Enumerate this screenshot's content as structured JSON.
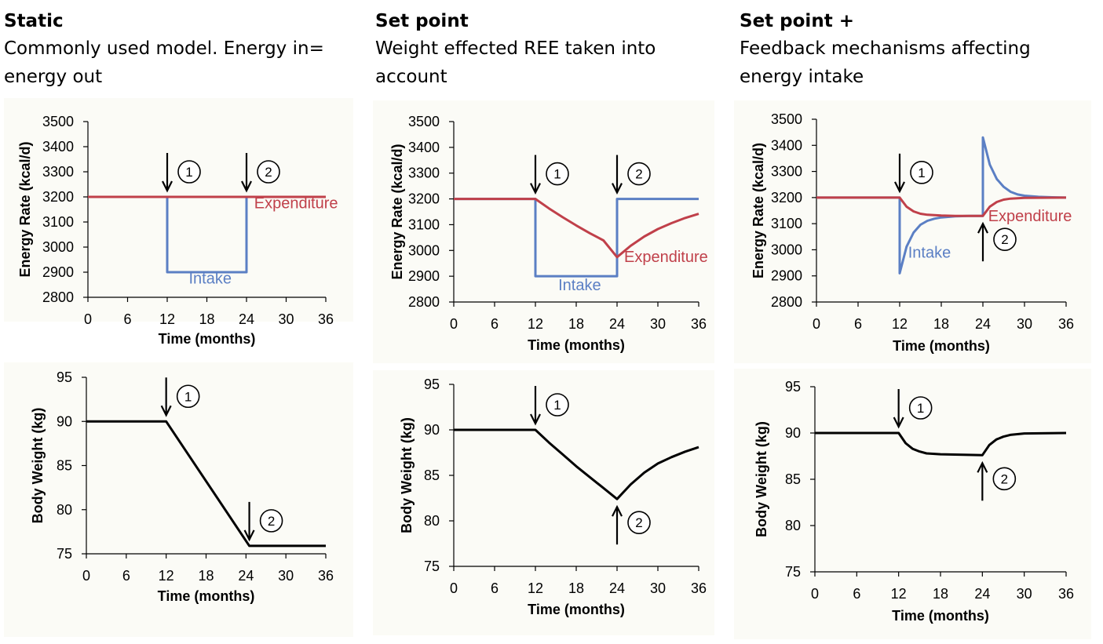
{
  "columns": [
    {
      "heading": "Static",
      "description": "Commonly used model. Energy in= energy out"
    },
    {
      "heading": "Set point",
      "description": "Weight effected REE taken into account"
    },
    {
      "heading": "Set point +",
      "description": "Feedback mechanisms affecting energy intake"
    }
  ],
  "colors": {
    "intake": "#5b7fc4",
    "expenditure": "#c0404a",
    "weight": "#000000"
  },
  "chart_data": [
    {
      "type": "line",
      "panel": "static-energy",
      "xlabel": "Time (months)",
      "ylabel": "Energy Rate (kcal/d)",
      "xlim": [
        0,
        36
      ],
      "ylim": [
        2800,
        3500
      ],
      "xticks": [
        0,
        6,
        12,
        18,
        24,
        30,
        36
      ],
      "yticks": [
        2800,
        2900,
        3000,
        3100,
        3200,
        3300,
        3400,
        3500
      ],
      "series": [
        {
          "name": "Intake",
          "color": "#5b7fc4",
          "points": [
            [
              0,
              3200
            ],
            [
              12,
              3200
            ],
            [
              12,
              2900
            ],
            [
              24,
              2900
            ],
            [
              24,
              3200
            ],
            [
              36,
              3200
            ]
          ]
        },
        {
          "name": "Expenditure",
          "color": "#c0404a",
          "points": [
            [
              0,
              3200
            ],
            [
              36,
              3200
            ]
          ]
        }
      ],
      "labels": [
        {
          "text": "Intake",
          "x": 18.5,
          "y": 2855,
          "color": "#5b7fc4"
        },
        {
          "text": "Expenditure",
          "x": 31.5,
          "y": 3155,
          "color": "#c0404a"
        }
      ],
      "markers": [
        {
          "num": "1",
          "x": 12,
          "y": 3200,
          "dir": "down"
        },
        {
          "num": "2",
          "x": 24,
          "y": 3200,
          "dir": "down"
        }
      ]
    },
    {
      "type": "line",
      "panel": "static-weight",
      "xlabel": "Time (months)",
      "ylabel": "Body Weight (kg)",
      "xlim": [
        0,
        36
      ],
      "ylim": [
        75,
        95
      ],
      "xticks": [
        0,
        6,
        12,
        18,
        24,
        30,
        36
      ],
      "yticks": [
        75,
        80,
        85,
        90,
        95
      ],
      "series": [
        {
          "name": "",
          "color": "#000000",
          "points": [
            [
              0,
              90
            ],
            [
              12,
              90
            ],
            [
              24.5,
              75.9
            ],
            [
              36,
              75.9
            ]
          ]
        }
      ],
      "labels": [],
      "markers": [
        {
          "num": "1",
          "x": 12,
          "y": 90,
          "dir": "down"
        },
        {
          "num": "2",
          "x": 24.5,
          "y": 75.9,
          "dir": "down"
        }
      ]
    },
    {
      "type": "line",
      "panel": "setpoint-energy",
      "xlabel": "Time (months)",
      "ylabel": "Energy Rate (kcal/d)",
      "xlim": [
        0,
        36
      ],
      "ylim": [
        2800,
        3500
      ],
      "xticks": [
        0,
        6,
        12,
        18,
        24,
        30,
        36
      ],
      "yticks": [
        2800,
        2900,
        3000,
        3100,
        3200,
        3300,
        3400,
        3500
      ],
      "series": [
        {
          "name": "Intake",
          "color": "#5b7fc4",
          "points": [
            [
              0,
              3200
            ],
            [
              12,
              3200
            ],
            [
              12,
              2900
            ],
            [
              24,
              2900
            ],
            [
              24,
              3200
            ],
            [
              36,
              3200
            ]
          ]
        },
        {
          "name": "Expenditure",
          "color": "#c0404a",
          "points": [
            [
              0,
              3200
            ],
            [
              12,
              3200
            ],
            [
              14,
              3163
            ],
            [
              16,
              3129
            ],
            [
              18,
              3097
            ],
            [
              20,
              3067
            ],
            [
              22,
              3039
            ],
            [
              24,
              2974
            ],
            [
              24,
              2974
            ],
            [
              26,
              3018
            ],
            [
              28,
              3054
            ],
            [
              30,
              3083
            ],
            [
              32,
              3106
            ],
            [
              34,
              3126
            ],
            [
              36,
              3142
            ]
          ]
        }
      ],
      "labels": [
        {
          "text": "Intake",
          "x": 18.5,
          "y": 2845,
          "color": "#5b7fc4"
        },
        {
          "text": "Expenditure",
          "x": 31.2,
          "y": 2955,
          "color": "#c0404a"
        }
      ],
      "markers": [
        {
          "num": "1",
          "x": 12,
          "y": 3200,
          "dir": "down"
        },
        {
          "num": "2",
          "x": 24,
          "y": 3200,
          "dir": "down"
        }
      ]
    },
    {
      "type": "line",
      "panel": "setpoint-weight",
      "xlabel": "Time (months)",
      "ylabel": "Body Weight (kg)",
      "xlim": [
        0,
        36
      ],
      "ylim": [
        75,
        95
      ],
      "xticks": [
        0,
        6,
        12,
        18,
        24,
        30,
        36
      ],
      "yticks": [
        75,
        80,
        85,
        90,
        95
      ],
      "series": [
        {
          "name": "",
          "color": "#000000",
          "points": [
            [
              0,
              90
            ],
            [
              12,
              90
            ],
            [
              14,
              88.6
            ],
            [
              16,
              87.3
            ],
            [
              18,
              86.0
            ],
            [
              20,
              84.8
            ],
            [
              22,
              83.6
            ],
            [
              24,
              82.4
            ],
            [
              26,
              84.0
            ],
            [
              28,
              85.3
            ],
            [
              30,
              86.3
            ],
            [
              32,
              87.0
            ],
            [
              34,
              87.6
            ],
            [
              36,
              88.1
            ]
          ]
        }
      ],
      "labels": [],
      "markers": [
        {
          "num": "1",
          "x": 12,
          "y": 90,
          "dir": "down"
        },
        {
          "num": "2",
          "x": 24,
          "y": 82.4,
          "dir": "up"
        }
      ]
    },
    {
      "type": "line",
      "panel": "setpointplus-energy",
      "xlabel": "Time (months)",
      "ylabel": "Energy Rate (kcal/d)",
      "xlim": [
        0,
        36
      ],
      "ylim": [
        2800,
        3500
      ],
      "xticks": [
        0,
        6,
        12,
        18,
        24,
        30,
        36
      ],
      "yticks": [
        2800,
        2900,
        3000,
        3100,
        3200,
        3300,
        3400,
        3500
      ],
      "series": [
        {
          "name": "Intake",
          "color": "#5b7fc4",
          "points": [
            [
              0,
              3200
            ],
            [
              12,
              3200
            ],
            [
              12,
              2910
            ],
            [
              13,
              3012
            ],
            [
              14,
              3066
            ],
            [
              15,
              3096
            ],
            [
              16,
              3111
            ],
            [
              17,
              3119
            ],
            [
              18,
              3124
            ],
            [
              20,
              3128
            ],
            [
              22,
              3130
            ],
            [
              24,
              3130
            ],
            [
              24,
              3430
            ],
            [
              25,
              3326
            ],
            [
              26,
              3271
            ],
            [
              27,
              3241
            ],
            [
              28,
              3222
            ],
            [
              29,
              3212
            ],
            [
              30,
              3207
            ],
            [
              32,
              3203
            ],
            [
              34,
              3201
            ],
            [
              36,
              3200
            ]
          ]
        },
        {
          "name": "Expenditure",
          "color": "#c0404a",
          "points": [
            [
              0,
              3200
            ],
            [
              12,
              3200
            ],
            [
              13,
              3165
            ],
            [
              14,
              3147
            ],
            [
              15,
              3138
            ],
            [
              16,
              3134
            ],
            [
              18,
              3131
            ],
            [
              20,
              3130
            ],
            [
              24,
              3130
            ],
            [
              25,
              3165
            ],
            [
              26,
              3183
            ],
            [
              27,
              3192
            ],
            [
              28,
              3196
            ],
            [
              30,
              3199
            ],
            [
              36,
              3200
            ]
          ]
        }
      ],
      "labels": [
        {
          "text": "Intake",
          "x": 16.3,
          "y": 2970,
          "color": "#5b7fc4"
        },
        {
          "text": "Expenditure",
          "x": 30.8,
          "y": 3110,
          "color": "#c0404a"
        }
      ],
      "markers": [
        {
          "num": "1",
          "x": 12,
          "y": 3200,
          "dir": "down"
        },
        {
          "num": "2",
          "x": 24,
          "y": 3130,
          "dir": "up"
        }
      ]
    },
    {
      "type": "line",
      "panel": "setpointplus-weight",
      "xlabel": "Time (months)",
      "ylabel": "Body Weight (kg)",
      "xlim": [
        0,
        36
      ],
      "ylim": [
        75,
        95
      ],
      "xticks": [
        0,
        6,
        12,
        18,
        24,
        30,
        36
      ],
      "yticks": [
        75,
        80,
        85,
        90,
        95
      ],
      "series": [
        {
          "name": "",
          "color": "#000000",
          "points": [
            [
              0,
              90
            ],
            [
              12,
              90
            ],
            [
              13,
              88.9
            ],
            [
              14,
              88.3
            ],
            [
              15,
              88.0
            ],
            [
              16,
              87.8
            ],
            [
              18,
              87.7
            ],
            [
              24,
              87.6
            ],
            [
              25,
              88.7
            ],
            [
              26,
              89.3
            ],
            [
              27,
              89.6
            ],
            [
              28,
              89.8
            ],
            [
              30,
              89.95
            ],
            [
              36,
              90
            ]
          ]
        }
      ],
      "labels": [],
      "markers": [
        {
          "num": "1",
          "x": 12,
          "y": 90,
          "dir": "down"
        },
        {
          "num": "2",
          "x": 24,
          "y": 87.6,
          "dir": "up"
        }
      ]
    }
  ]
}
